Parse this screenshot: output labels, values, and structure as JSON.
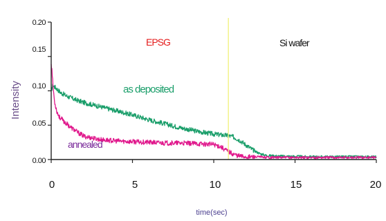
{
  "chart_data": {
    "type": "line",
    "title": "",
    "xlabel": "time(sec)",
    "ylabel": "Intensity",
    "xlim": [
      0,
      20
    ],
    "ylim": [
      0,
      0.2
    ],
    "x_ticks": [
      "0",
      "5",
      "10",
      "15",
      "20"
    ],
    "y_ticks": [
      "0.00",
      "0.05",
      "0.10",
      "0.15",
      "0.20"
    ],
    "grid": false,
    "annotations": {
      "epsg": "EPSG",
      "siwafer": "Si wafer",
      "asdeposited": "as deposited",
      "annealed": "annealed"
    },
    "marker_line_x": 10.9,
    "series": [
      {
        "name": "as deposited",
        "color": "#1a9e6a",
        "x": [
          0,
          0.1,
          0.3,
          0.6,
          1,
          1.5,
          2,
          3,
          4,
          5,
          6,
          7,
          8,
          9,
          10,
          10.8,
          11.2,
          11.6,
          12,
          12.4,
          12.8,
          13.2,
          14,
          16,
          18,
          20
        ],
        "y": [
          0.1,
          0.108,
          0.104,
          0.097,
          0.092,
          0.087,
          0.083,
          0.077,
          0.071,
          0.065,
          0.058,
          0.052,
          0.046,
          0.041,
          0.037,
          0.035,
          0.033,
          0.028,
          0.021,
          0.014,
          0.009,
          0.006,
          0.005,
          0.004,
          0.004,
          0.004
        ]
      },
      {
        "name": "annealed",
        "color": "#e0188c",
        "x": [
          0,
          0.05,
          0.1,
          0.2,
          0.35,
          0.5,
          0.8,
          1.2,
          1.6,
          2,
          3,
          4,
          5,
          6,
          7,
          8,
          9,
          10,
          10.4,
          10.8,
          11.2,
          11.6,
          12,
          14,
          16,
          18,
          20
        ],
        "y": [
          0.14,
          0.13,
          0.11,
          0.085,
          0.07,
          0.062,
          0.055,
          0.047,
          0.04,
          0.034,
          0.029,
          0.027,
          0.026,
          0.025,
          0.024,
          0.024,
          0.023,
          0.022,
          0.019,
          0.013,
          0.008,
          0.005,
          0.004,
          0.003,
          0.003,
          0.003,
          0.003
        ]
      }
    ]
  }
}
